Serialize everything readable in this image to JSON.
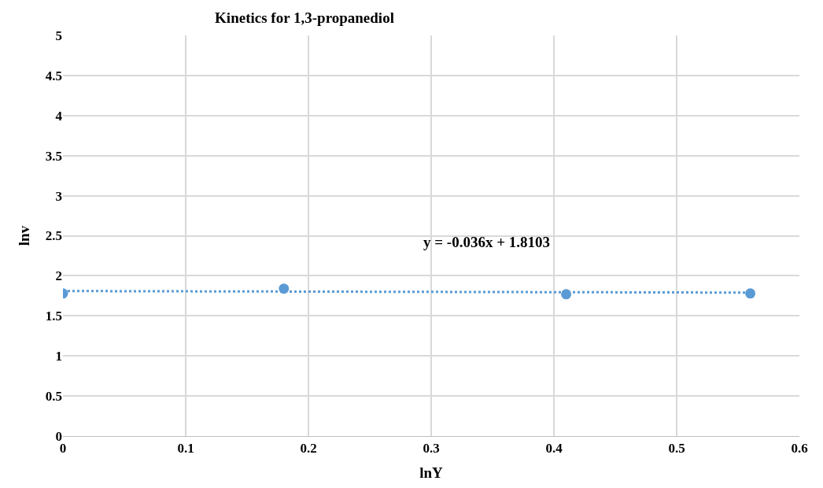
{
  "chart_data": {
    "type": "scatter",
    "title": "Kinetics for 1,3-propanediol",
    "xlabel": "lnY",
    "ylabel": "lnv",
    "x": [
      0,
      0.18,
      0.41,
      0.56
    ],
    "series": [
      {
        "color": "#5b9bd5",
        "values": [
          1.78,
          1.84,
          1.77,
          1.78
        ],
        "marker": "circle"
      },
      {
        "type": "line",
        "color": "#5b9bd5",
        "x": [
          0,
          0.56
        ],
        "values": [
          1.81,
          1.79
        ],
        "line_style": "dotted",
        "marker": "none"
      }
    ],
    "annotations": [
      "y = -0.036x + 1.8103"
    ],
    "xlim": [
      0,
      0.6
    ],
    "xticks": [
      0,
      0.1,
      0.2,
      0.3,
      0.4,
      0.5,
      0.6
    ],
    "ylim": [
      0,
      5
    ],
    "yticks": [
      0,
      0.5,
      1,
      1.5,
      2,
      2.5,
      3,
      3.5,
      4,
      4.5,
      5
    ],
    "grid": true
  }
}
